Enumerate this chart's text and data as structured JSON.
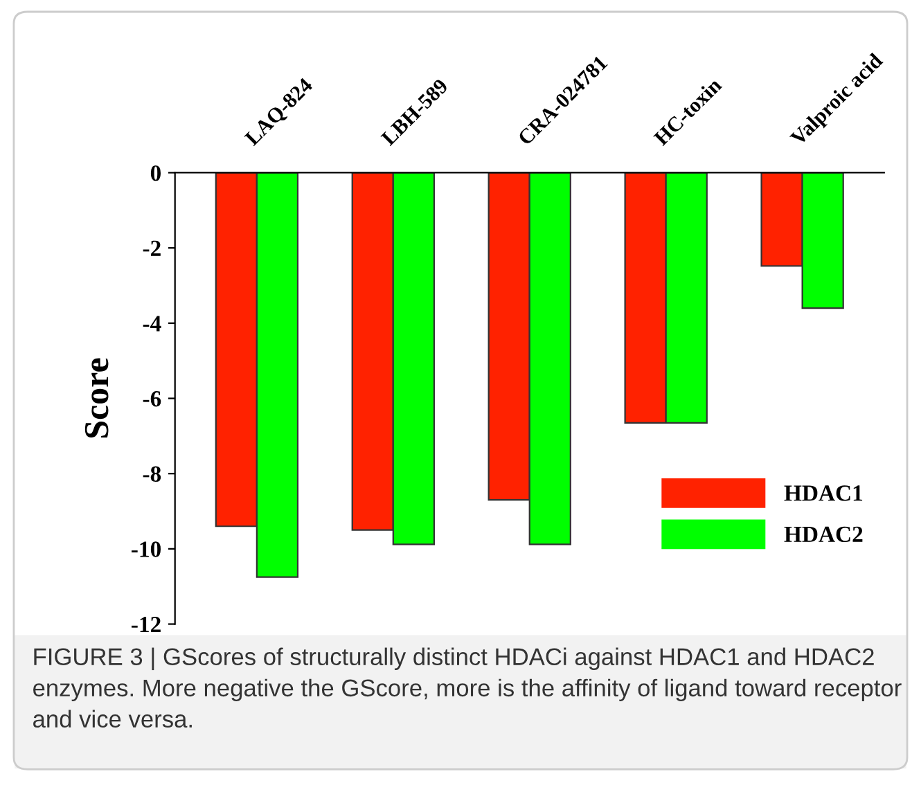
{
  "chart_data": {
    "type": "bar",
    "ylabel": "Score",
    "categories": [
      "LAQ-824",
      "LBH-589",
      "CRA-024781",
      "HC-toxin",
      "Valproic acid"
    ],
    "series": [
      {
        "name": "HDAC1",
        "color": "#ff2200",
        "values": [
          -9.4,
          -9.5,
          -8.7,
          -6.65,
          -2.48
        ]
      },
      {
        "name": "HDAC2",
        "color": "#00ff00",
        "values": [
          -10.75,
          -9.88,
          -9.88,
          -6.65,
          -3.6
        ]
      }
    ],
    "ylim": [
      -12,
      0
    ],
    "yticks": [
      0,
      -2,
      -4,
      -6,
      -8,
      -10,
      -12
    ],
    "grid": false,
    "legend": "bottom right",
    "annotations": [
      "FIGURE 3 | GScores of structurally distinct HDACi against HDAC1 and HDAC2 enzymes. More negative the GScore, more is the affinity of ligand toward receptor and vice versa."
    ]
  }
}
